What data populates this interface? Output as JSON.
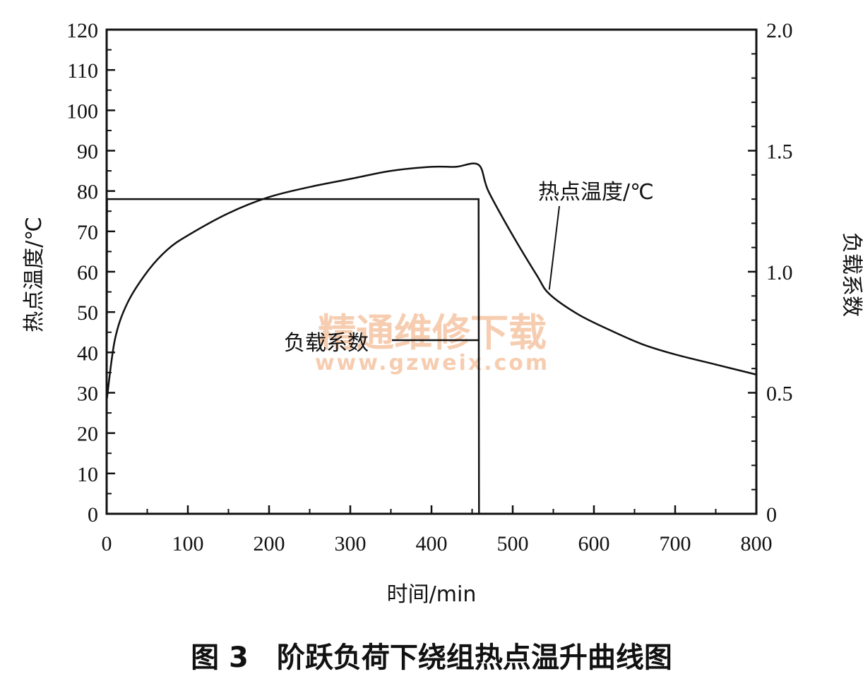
{
  "chart_data": {
    "type": "line",
    "xlabel": "时间/min",
    "ylabel_left": "热点温度/℃",
    "ylabel_right": "负载系数",
    "xlim": [
      0,
      800
    ],
    "ylim_left": [
      0,
      120
    ],
    "ylim_right": [
      0,
      2.0
    ],
    "x_ticks": [
      0,
      100,
      200,
      300,
      400,
      500,
      600,
      700,
      800
    ],
    "y_left_ticks": [
      0,
      10,
      20,
      30,
      40,
      50,
      60,
      70,
      80,
      90,
      100,
      110,
      120
    ],
    "y_right_ticks": [
      0,
      0.5,
      1.0,
      1.5,
      2.0
    ],
    "y_right_tick_labels": [
      "0",
      "0.5",
      "1.0",
      "1.5",
      "2.0"
    ],
    "grid": false,
    "series": [
      {
        "name": "热点温度/℃",
        "axis": "left",
        "x": [
          0,
          10,
          25,
          50,
          75,
          100,
          150,
          200,
          250,
          300,
          350,
          400,
          430,
          458,
          470,
          500,
          530,
          545,
          580,
          620,
          660,
          700,
          750,
          800
        ],
        "y": [
          28,
          43,
          52,
          60,
          65.5,
          69,
          74.5,
          78.5,
          81,
          83,
          85,
          86,
          86,
          86.5,
          80,
          69,
          59,
          54.5,
          49.5,
          45.5,
          42,
          39.5,
          37,
          34.5
        ]
      },
      {
        "name": "负载系数",
        "axis": "right",
        "x": [
          0,
          0.5,
          458,
          458.5
        ],
        "y": [
          0,
          1.3,
          1.3,
          0
        ]
      }
    ],
    "annotations": [
      {
        "text": "热点温度/℃",
        "target_series": 0
      },
      {
        "text": "负载系数",
        "target_series": 1
      }
    ]
  },
  "caption": "图 3　阶跃负荷下绕组热点温升曲线图",
  "watermark": {
    "line1": "精通维修下载",
    "line2": "www.gzweix.com"
  }
}
